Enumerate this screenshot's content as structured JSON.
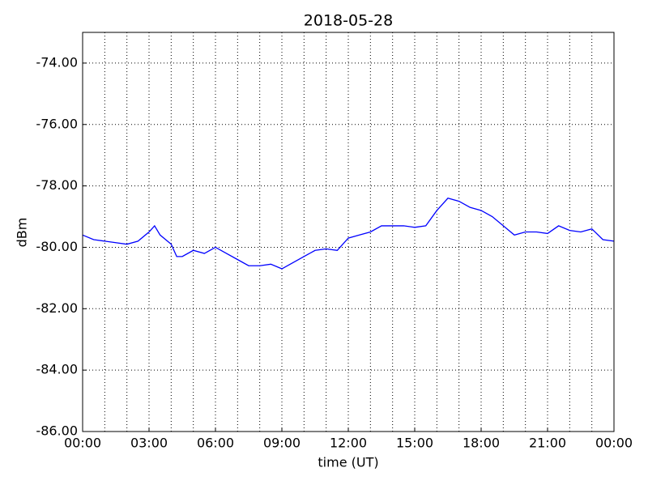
{
  "chart_data": {
    "type": "line",
    "title": "2018-05-28",
    "x_label": "time (UT)",
    "y_label": "dBm",
    "x": [
      0,
      0.5,
      1,
      1.5,
      2,
      2.5,
      3,
      3.25,
      3.5,
      4,
      4.25,
      4.5,
      5,
      5.5,
      6,
      6.5,
      7,
      7.5,
      8,
      8.5,
      9,
      9.5,
      10,
      10.5,
      11,
      11.5,
      12,
      12.5,
      13,
      13.5,
      14,
      14.5,
      15,
      15.5,
      16,
      16.5,
      17,
      17.5,
      18,
      18.5,
      19,
      19.5,
      20,
      20.5,
      21,
      21.5,
      22,
      22.5,
      23,
      23.5,
      24
    ],
    "series": [
      {
        "name": "dBm",
        "color": "#0000ff",
        "values": [
          -79.6,
          -79.75,
          -79.8,
          -79.85,
          -79.9,
          -79.8,
          -79.5,
          -79.3,
          -79.6,
          -79.9,
          -80.3,
          -80.3,
          -80.1,
          -80.2,
          -80.0,
          -80.2,
          -80.4,
          -80.6,
          -80.6,
          -80.55,
          -80.7,
          -80.5,
          -80.3,
          -80.1,
          -80.05,
          -80.1,
          -79.7,
          -79.6,
          -79.5,
          -79.3,
          -79.3,
          -79.3,
          -79.35,
          -79.3,
          -78.8,
          -78.4,
          -78.5,
          -78.7,
          -78.8,
          -79.0,
          -79.3,
          -79.6,
          -79.5,
          -79.5,
          -79.55,
          -79.3,
          -79.45,
          -79.5,
          -79.4,
          -79.75,
          -79.8
        ]
      }
    ],
    "xlim": [
      0,
      24
    ],
    "xticks": [
      {
        "value": 0,
        "label": "00:00"
      },
      {
        "value": 3,
        "label": "03:00"
      },
      {
        "value": 6,
        "label": "06:00"
      },
      {
        "value": 9,
        "label": "09:00"
      },
      {
        "value": 12,
        "label": "12:00"
      },
      {
        "value": 15,
        "label": "15:00"
      },
      {
        "value": 18,
        "label": "18:00"
      },
      {
        "value": 21,
        "label": "21:00"
      },
      {
        "value": 24,
        "label": "00:00"
      }
    ],
    "x_minor_ticks": [
      1,
      2,
      4,
      5,
      7,
      8,
      10,
      11,
      13,
      14,
      16,
      17,
      19,
      20,
      22,
      23
    ],
    "ylim": [
      -86,
      -73
    ],
    "yticks": [
      {
        "value": -86,
        "label": "-86.00"
      },
      {
        "value": -84,
        "label": "-84.00"
      },
      {
        "value": -82,
        "label": "-82.00"
      },
      {
        "value": -80,
        "label": "-80.00"
      },
      {
        "value": -78,
        "label": "-78.00"
      },
      {
        "value": -76,
        "label": "-76.00"
      },
      {
        "value": -74,
        "label": "-74.00"
      }
    ],
    "grid": true
  }
}
